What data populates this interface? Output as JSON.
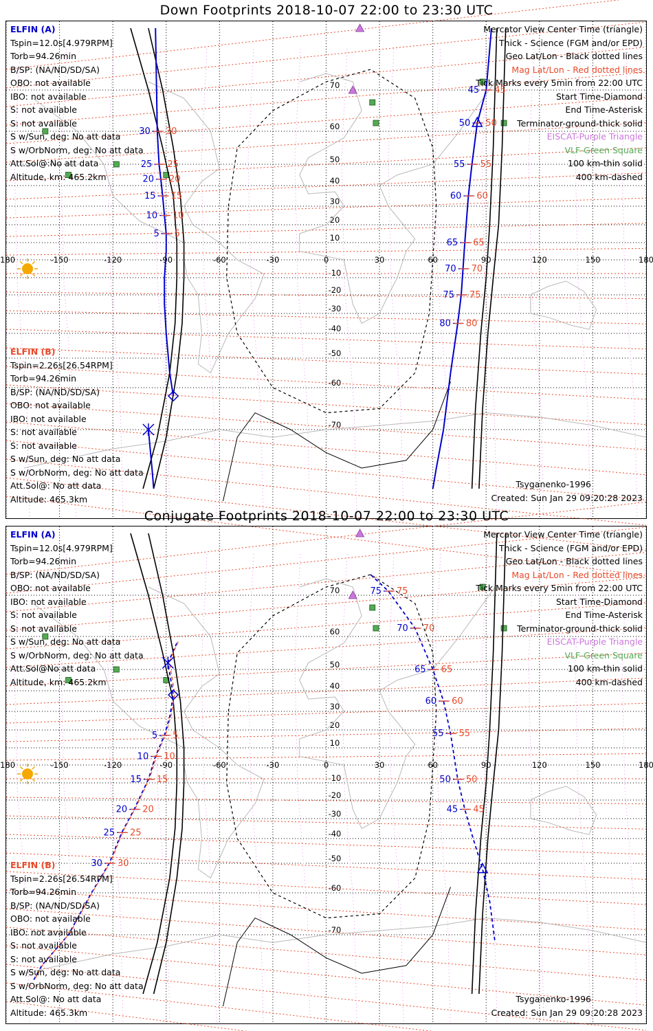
{
  "panels": [
    {
      "title": "Down Footprints 2018-10-07 22:00 to 23:30 UTC",
      "elfin_a": {
        "name": "ELFIN (A)",
        "lines": [
          "Tspin=12.0s[4.979RPM]",
          "Torb=94.26min",
          "B/SP: (NA/ND/SD/SA)",
          "OBO: not available",
          "IBO: not available",
          "S: not available",
          "S: not available",
          "S w/Sun, deg: No att data",
          "S w/OrbNorm, deg: No att data",
          "Att.Sol@:No att data",
          "Altitude, km: 465.2km"
        ]
      },
      "elfin_b": {
        "name": "ELFIN (B)",
        "lines": [
          "Tspin=2.26s[26.54RPM]",
          "Torb=94.26min",
          "B/SP: (NA/ND/SD/SA)",
          "OBO: not available",
          "IBO: not available",
          "S: not available",
          "S: not available",
          "S w/Sun, deg: No att data",
          "S w/OrbNorm, deg: No att data",
          "Att.Sol@: No att data",
          "Altitude: 465.3km"
        ]
      },
      "tracks": {
        "a": {
          "lon": [
            -96,
            -95,
            -94,
            -93,
            -92,
            -91,
            -90,
            -90,
            -91,
            -91,
            -90,
            -88,
            -86
          ],
          "lat": [
            85,
            60,
            50,
            43,
            35,
            25,
            15,
            5,
            -10,
            -25,
            -40,
            -55,
            -62
          ]
        },
        "b": {
          "lon": [
            -100,
            -98,
            -97
          ],
          "lat": [
            -70,
            -80,
            -85
          ]
        },
        "east_a": {
          "lon": [
            93,
            90,
            85,
            82,
            80,
            78,
            77,
            76,
            74,
            70,
            66,
            62,
            60
          ],
          "lat": [
            85,
            70,
            62,
            50,
            35,
            10,
            -5,
            -20,
            -35,
            -55,
            -70,
            -80,
            -85
          ]
        },
        "terminator_main": {
          "lon": [
            -100,
            -92,
            -86,
            -82,
            -80,
            -80,
            -81,
            -84,
            -90,
            -97
          ],
          "lat": [
            85,
            70,
            55,
            35,
            10,
            -10,
            -35,
            -55,
            -72,
            -85
          ]
        },
        "terminator_east": {
          "lon": [
            86,
            88,
            91,
            94,
            97,
            99,
            101
          ],
          "lat": [
            -85,
            -65,
            -40,
            -10,
            20,
            55,
            85
          ]
        },
        "ellipse_100km": {
          "lon": [
            -50,
            -40,
            -20,
            0,
            20,
            40,
            60,
            65
          ],
          "lat": [
            -85,
            -68,
            -72,
            -78,
            -82,
            -80,
            -70,
            -50
          ]
        }
      }
    },
    {
      "title": "Conjugate Footprints 2018-10-07 22:00 to 23:30 UTC",
      "elfin_a": {
        "name": "ELFIN (A)",
        "lines": [
          "Tspin=12.0s[4.979RPM]",
          "Torb=94.26min",
          "B/SP: (NA/ND/SD/SA)",
          "OBO: not available",
          "IBO: not available",
          "S: not available",
          "S: not available",
          "S w/Sun, deg: No att data",
          "S w/OrbNorm, deg: No att data",
          "Att.Sol@No att data",
          "Altitude, km: 465.2km"
        ]
      },
      "elfin_b": {
        "name": "ELFIN (B)",
        "lines": [
          "Tspin=2.26s[26.54RPM]",
          "Torb=94.26min",
          "B/SP: (NA/ND/SD/SA)",
          "OBO: not available",
          "IBO: not available",
          "S: not available",
          "S: not available",
          "S w/Sun, deg: No att data",
          "S w/OrbNorm, deg: No att data",
          "Att.Sol@: No att data",
          "Altitude: 465.3km"
        ]
      }
    }
  ],
  "legend": {
    "lines": [
      {
        "text": "Mercator View Center Time (triangle)",
        "color": "#000000"
      },
      {
        "text": "Thick - Science (FGM and/or EPD)",
        "color": "#000000"
      },
      {
        "text": "Geo Lat/Lon - Black dotted lines",
        "color": "#000000"
      },
      {
        "text": "Mag Lat/Lon - Red dotted lines",
        "color": "#e84a2a"
      },
      {
        "text": "Tick Marks every 5min from 22:00 UTC",
        "color": "#000000"
      },
      {
        "text": "Start Time-Diamond",
        "color": "#000000"
      },
      {
        "text": "End Time-Asterisk",
        "color": "#000000"
      },
      {
        "text": "Terminator-ground-thick solid",
        "color": "#000000"
      },
      {
        "text": "EISCAT-Purple Triangle",
        "color": "#cc77dd"
      },
      {
        "text": "VLF-Green Square",
        "color": "#55aa55"
      },
      {
        "text": "100 km-thin solid",
        "color": "#000000"
      },
      {
        "text": "400 km-dashed",
        "color": "#000000"
      }
    ]
  },
  "footer": {
    "model": "Tsyganenko-1996",
    "created": "Created: Sun Jan 29 09:20:28 2023"
  },
  "axis": {
    "lon_ticks": [
      "-180",
      "-150",
      "-120",
      "-90",
      "-60",
      "-30",
      "0",
      "30",
      "60",
      "90",
      "120",
      "150",
      "180"
    ],
    "lat_ticks": [
      "70",
      "60",
      "50",
      "40",
      "30",
      "20",
      "10",
      "-10",
      "-20",
      "-30",
      "-40",
      "-50",
      "-60",
      "-70"
    ]
  },
  "colors": {
    "elfin_a": "#0000cc",
    "elfin_b": "#e84a2a",
    "geo_grid": "#000000",
    "mag_grid": "#e84a2a",
    "eiscat": "#cc77dd",
    "vlf": "#55aa55",
    "sun": "#f5a800"
  },
  "tick_labels": {
    "down_a": [
      "30",
      "25",
      "20",
      "15",
      "10",
      "5"
    ],
    "down_b": [
      "30",
      "25",
      "20",
      "15",
      "10",
      "5"
    ],
    "down_east_a": [
      "45",
      "50",
      "55",
      "60",
      "65",
      "70",
      "75",
      "80"
    ],
    "down_east_b": [
      "45",
      "50",
      "55",
      "60",
      "65",
      "70",
      "75",
      "80"
    ],
    "conj_west_a": [
      "5",
      "10",
      "15",
      "20",
      "25",
      "30"
    ],
    "conj_west_b": [
      "5",
      "10",
      "15",
      "20",
      "25",
      "30"
    ],
    "conj_east_a": [
      "75",
      "70",
      "65",
      "60",
      "55",
      "50",
      "45"
    ],
    "conj_east_b": [
      "75",
      "70",
      "65",
      "60",
      "55",
      "50",
      "45"
    ]
  }
}
